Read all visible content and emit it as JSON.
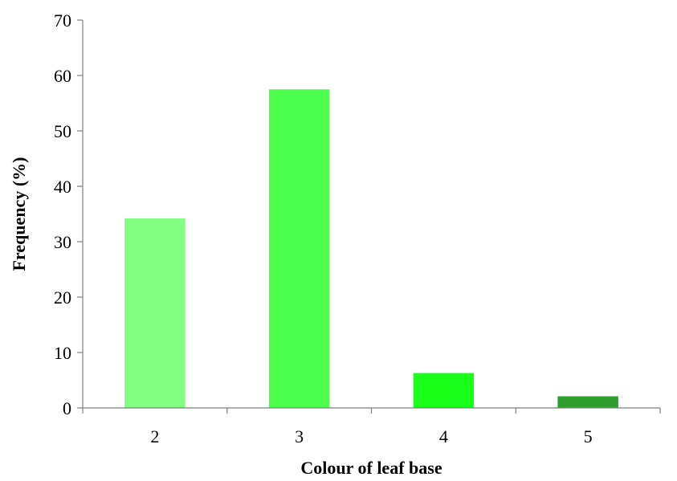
{
  "chart_data": {
    "type": "bar",
    "title": "",
    "xlabel": "Colour of leaf base",
    "ylabel": "Frequency (%)",
    "categories": [
      "2",
      "3",
      "4",
      "5"
    ],
    "values": [
      34.2,
      57.5,
      6.3,
      2.1
    ],
    "bar_colors": [
      "#80ff80",
      "#4dff4d",
      "#1aff1a",
      "#2e9e2e"
    ],
    "ylim": [
      0,
      70
    ],
    "yticks": [
      0,
      10,
      20,
      30,
      40,
      50,
      60,
      70
    ],
    "grid": false,
    "legend": "none"
  }
}
